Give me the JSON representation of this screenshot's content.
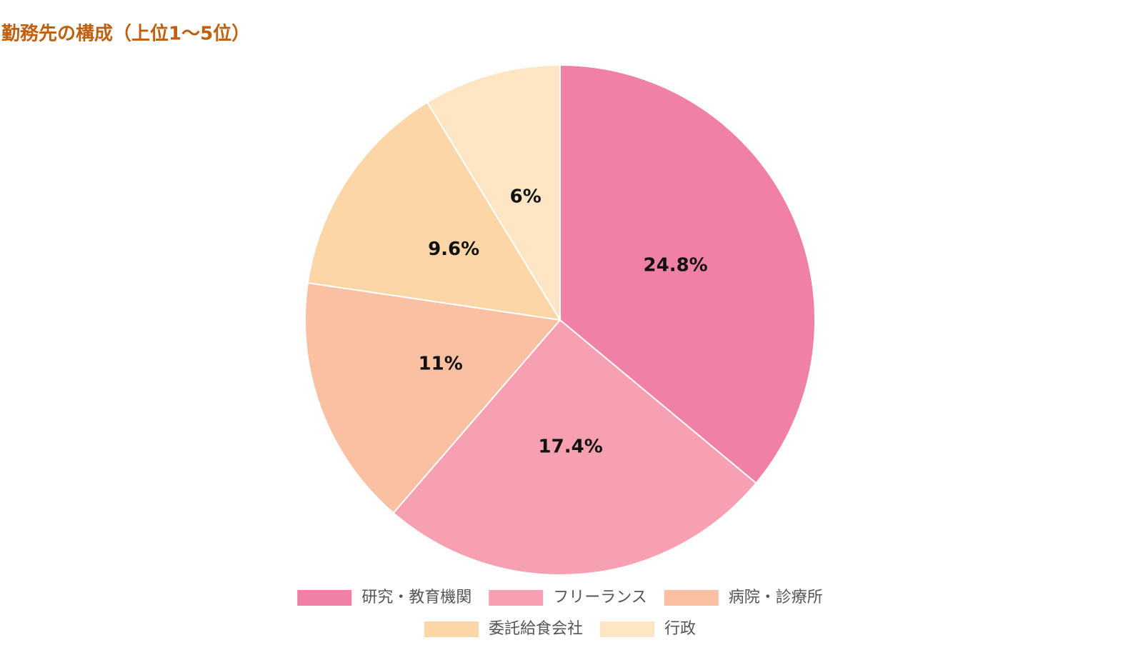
{
  "chart_data": {
    "type": "pie",
    "title": "勤務先の構成（上位1〜5位）",
    "categories": [
      "研究・教育機関",
      "フリーランス",
      "病院・診療所",
      "委託給食会社",
      "行政"
    ],
    "values": [
      24.8,
      17.4,
      11,
      9.6,
      6
    ],
    "value_labels": [
      "24.8%",
      "17.4%",
      "11%",
      "9.6%",
      "6%"
    ],
    "colors": [
      "#f080a6",
      "#f7a0b2",
      "#f9c0a2",
      "#fcd6a6",
      "#fee6c4"
    ],
    "legend": "bottom"
  }
}
